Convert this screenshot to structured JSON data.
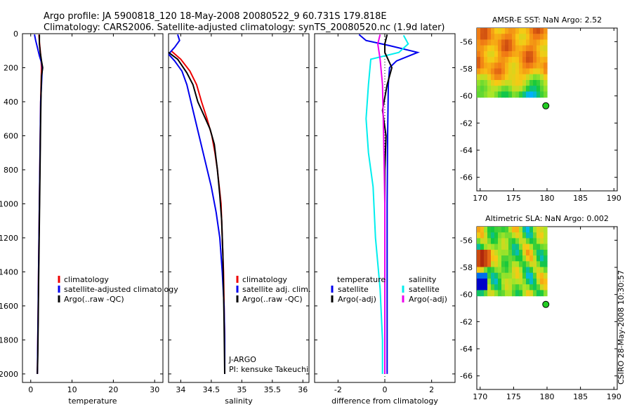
{
  "header": {
    "line1": "Argo profile: JA 5900818_120 18-May-2008 20080522_9 60.731S 179.818E",
    "line2": "Climatology: CARS2006. Satellite-adjusted climatology: synTS_20080520.nc (1.9d later)"
  },
  "side_label": "CSIRO 28-May-2008 10:30:57",
  "colors": {
    "red": "#ee0000",
    "blue": "#0000ee",
    "black": "#000000",
    "cyan": "#00eeee",
    "magenta": "#ee00ee",
    "marker": "#22cc22"
  },
  "chart_data": [
    {
      "id": "temperature",
      "type": "line",
      "xlabel": "temperature",
      "xlim": [
        -2,
        32
      ],
      "ylim": [
        2050,
        0
      ],
      "xticks": [
        0,
        10,
        20,
        30
      ],
      "yticks": [
        0,
        200,
        400,
        600,
        800,
        1000,
        1200,
        1400,
        1600,
        1800,
        2000
      ],
      "legend": {
        "placement": "lower-left",
        "items": [
          {
            "name": "climatology",
            "color": "#ee0000"
          },
          {
            "name": "satellite-adjusted climatology",
            "color": "#0000ee"
          },
          {
            "name": "Argo(..raw -QC)",
            "color": "#000000"
          }
        ]
      },
      "series": [
        {
          "name": "climatology",
          "color": "#ee0000",
          "points": [
            [
              2.0,
              5
            ],
            [
              2.1,
              50
            ],
            [
              2.3,
              100
            ],
            [
              2.5,
              150
            ],
            [
              2.6,
              200
            ],
            [
              2.5,
              300
            ],
            [
              2.4,
              400
            ],
            [
              2.3,
              600
            ],
            [
              2.2,
              800
            ],
            [
              2.1,
              1000
            ],
            [
              2.0,
              1200
            ],
            [
              1.9,
              1400
            ],
            [
              1.8,
              1600
            ],
            [
              1.7,
              1800
            ],
            [
              1.6,
              2000
            ]
          ]
        },
        {
          "name": "satellite-adjusted climatology",
          "color": "#0000ee",
          "points": [
            [
              0.9,
              5
            ],
            [
              1.2,
              40
            ],
            [
              1.6,
              80
            ],
            [
              2.1,
              130
            ],
            [
              2.6,
              170
            ],
            [
              2.8,
              200
            ],
            [
              2.6,
              300
            ],
            [
              2.4,
              400
            ],
            [
              2.3,
              600
            ],
            [
              2.2,
              800
            ],
            [
              2.1,
              1000
            ],
            [
              2.0,
              1200
            ],
            [
              1.9,
              1400
            ],
            [
              1.8,
              1600
            ],
            [
              1.7,
              1800
            ],
            [
              1.6,
              2000
            ]
          ]
        },
        {
          "name": "Argo(..raw -QC)",
          "color": "#000000",
          "points": [
            [
              2.1,
              5
            ],
            [
              2.1,
              60
            ],
            [
              2.3,
              110
            ],
            [
              2.6,
              160
            ],
            [
              2.9,
              200
            ],
            [
              2.6,
              250
            ],
            [
              2.5,
              350
            ],
            [
              2.4,
              500
            ],
            [
              2.3,
              700
            ],
            [
              2.2,
              900
            ],
            [
              2.1,
              1100
            ],
            [
              2.0,
              1300
            ],
            [
              1.9,
              1500
            ],
            [
              1.8,
              1700
            ],
            [
              1.7,
              1900
            ],
            [
              1.6,
              2000
            ]
          ]
        }
      ]
    },
    {
      "id": "salinity",
      "type": "line",
      "xlabel": "salinity",
      "xlim": [
        33.8,
        36.1
      ],
      "ylim": [
        2050,
        0
      ],
      "xticks": [
        34,
        34.5,
        35,
        35.5,
        36
      ],
      "yticks": [
        0,
        200,
        400,
        600,
        800,
        1000,
        1200,
        1400,
        1600,
        1800,
        2000
      ],
      "legend": {
        "placement": "lower-left",
        "items": [
          {
            "name": "climatology",
            "color": "#ee0000"
          },
          {
            "name": "satellite adj. clim.",
            "color": "#0000ee"
          },
          {
            "name": "Argo(..raw -QC)",
            "color": "#000000"
          }
        ]
      },
      "annotations": [
        "J-ARGO",
        "PI: kensuke Takeuchi"
      ],
      "series": [
        {
          "name": "climatology",
          "color": "#ee0000",
          "points": [
            [
              33.84,
              100
            ],
            [
              34.0,
              150
            ],
            [
              34.15,
              220
            ],
            [
              34.26,
              300
            ],
            [
              34.34,
              400
            ],
            [
              34.43,
              500
            ],
            [
              34.51,
              600
            ],
            [
              34.56,
              700
            ],
            [
              34.6,
              800
            ],
            [
              34.63,
              900
            ],
            [
              34.66,
              1000
            ],
            [
              34.68,
              1200
            ],
            [
              34.7,
              1400
            ],
            [
              34.71,
              1600
            ],
            [
              34.72,
              1800
            ],
            [
              34.72,
              2000
            ]
          ]
        },
        {
          "name": "satellite adj. clim.",
          "color": "#0000ee",
          "points": [
            [
              33.95,
              5
            ],
            [
              33.98,
              40
            ],
            [
              33.9,
              80
            ],
            [
              33.8,
              120
            ],
            [
              33.9,
              160
            ],
            [
              34.02,
              220
            ],
            [
              34.1,
              300
            ],
            [
              34.2,
              450
            ],
            [
              34.3,
              600
            ],
            [
              34.4,
              750
            ],
            [
              34.5,
              900
            ],
            [
              34.58,
              1050
            ],
            [
              34.64,
              1200
            ],
            [
              34.68,
              1400
            ],
            [
              34.71,
              1600
            ],
            [
              34.72,
              1800
            ],
            [
              34.72,
              2000
            ]
          ]
        },
        {
          "name": "Argo(..raw -QC)",
          "color": "#000000",
          "points": [
            [
              33.8,
              110
            ],
            [
              33.95,
              150
            ],
            [
              34.1,
              230
            ],
            [
              34.2,
              300
            ],
            [
              34.28,
              400
            ],
            [
              34.38,
              480
            ],
            [
              34.48,
              560
            ],
            [
              34.55,
              650
            ],
            [
              34.6,
              800
            ],
            [
              34.64,
              950
            ],
            [
              34.67,
              1100
            ],
            [
              34.69,
              1300
            ],
            [
              34.7,
              1500
            ],
            [
              34.71,
              1700
            ],
            [
              34.72,
              2000
            ]
          ]
        }
      ]
    },
    {
      "id": "difference",
      "type": "line",
      "xlabel": "difference from climatology",
      "xlim": [
        -3,
        3
      ],
      "ylim": [
        2050,
        0
      ],
      "xticks": [
        -2,
        0,
        2
      ],
      "yticks": [
        0,
        200,
        400,
        600,
        800,
        1000,
        1200,
        1400,
        1600,
        1800,
        2000
      ],
      "legend": {
        "placement": "lower-left",
        "groups": [
          {
            "heading": "temperature",
            "items": [
              {
                "name": "satellite",
                "color": "#0000ee"
              },
              {
                "name": "Argo(-adj)",
                "color": "#000000"
              }
            ]
          },
          {
            "heading": "salinity",
            "items": [
              {
                "name": "satellite",
                "color": "#00eeee"
              },
              {
                "name": "Argo(-adj)",
                "color": "#ee00ee"
              }
            ]
          }
        ]
      },
      "series": [
        {
          "name": "temperature satellite",
          "color": "#0000ee",
          "points": [
            [
              -1.1,
              5
            ],
            [
              -0.8,
              40
            ],
            [
              0.2,
              70
            ],
            [
              1.4,
              110
            ],
            [
              0.5,
              160
            ],
            [
              0.2,
              200
            ],
            [
              0.15,
              300
            ],
            [
              0.12,
              600
            ],
            [
              0.1,
              1000
            ],
            [
              0.1,
              1500
            ],
            [
              0.1,
              2000
            ]
          ]
        },
        {
          "name": "salinity satellite",
          "color": "#00eeee",
          "points": [
            [
              0.8,
              10
            ],
            [
              1.0,
              60
            ],
            [
              0.6,
              110
            ],
            [
              -0.6,
              150
            ],
            [
              -0.7,
              300
            ],
            [
              -0.8,
              500
            ],
            [
              -0.7,
              700
            ],
            [
              -0.5,
              900
            ],
            [
              -0.4,
              1200
            ],
            [
              -0.2,
              1500
            ],
            [
              -0.1,
              1800
            ],
            [
              -0.1,
              2000
            ]
          ]
        },
        {
          "name": "temperature Argo(-adj)",
          "color": "#000000",
          "points": [
            [
              0.1,
              5
            ],
            [
              0.0,
              60
            ],
            [
              0.0,
              110
            ],
            [
              0.3,
              200
            ],
            [
              0.1,
              300
            ],
            [
              -0.1,
              450
            ],
            [
              0.05,
              600
            ],
            [
              0.0,
              800
            ],
            [
              0.0,
              1200
            ],
            [
              0.0,
              1600
            ],
            [
              0.0,
              2000
            ]
          ]
        },
        {
          "name": "salinity Argo(-adj)",
          "color": "#ee00ee",
          "points": [
            [
              -0.2,
              5
            ],
            [
              -0.3,
              60
            ],
            [
              -0.2,
              150
            ],
            [
              -0.1,
              300
            ],
            [
              -0.05,
              600
            ],
            [
              0.0,
              1000
            ],
            [
              0.0,
              1500
            ],
            [
              0.0,
              2000
            ]
          ]
        }
      ]
    },
    {
      "id": "sst_map",
      "type": "heatmap",
      "title": "AMSR-E SST: NaN Argo: 2.52",
      "xlim": [
        169.5,
        190.5
      ],
      "ylim": [
        -67,
        -55
      ],
      "xticks": [
        170,
        175,
        180,
        185,
        190
      ],
      "yticks": [
        -56,
        -58,
        -60,
        -62,
        -64,
        -66
      ],
      "data_extent": {
        "lon": [
          169.5,
          180
        ],
        "lat": [
          -60.1,
          -55
        ]
      },
      "marker": {
        "lon": 179.818,
        "lat": -60.731,
        "color": "#22cc22"
      }
    },
    {
      "id": "sla_map",
      "type": "heatmap",
      "title": "Altimetric SLA: NaN Argo: 0.002",
      "xlim": [
        169.5,
        190.5
      ],
      "ylim": [
        -67,
        -55
      ],
      "xticks": [
        170,
        175,
        180,
        185,
        190
      ],
      "yticks": [
        -56,
        -58,
        -60,
        -62,
        -64,
        -66
      ],
      "data_extent": {
        "lon": [
          169.5,
          180
        ],
        "lat": [
          -60.1,
          -55
        ]
      },
      "marker": {
        "lon": 179.818,
        "lat": -60.731,
        "color": "#22cc22"
      }
    }
  ]
}
